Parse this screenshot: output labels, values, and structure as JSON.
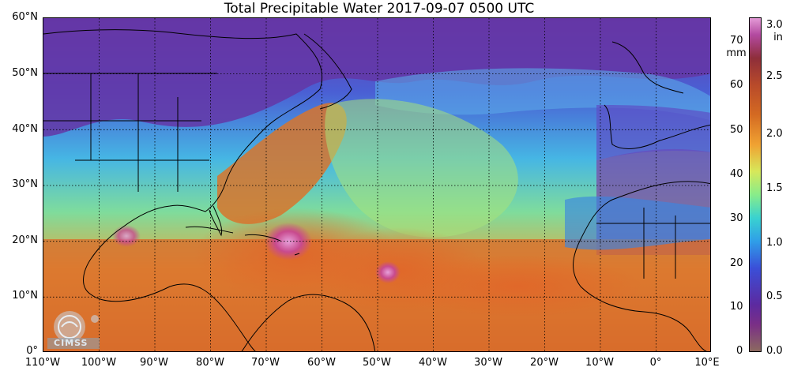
{
  "title": "Total Precipitable Water  2017-09-07 0500 UTC",
  "lat_labels": [
    "60°N",
    "50°N",
    "40°N",
    "30°N",
    "20°N",
    "10°N",
    "0°"
  ],
  "lon_labels": [
    "110°W",
    "100°W",
    "90°W",
    "80°W",
    "70°W",
    "60°W",
    "50°W",
    "40°W",
    "30°W",
    "20°W",
    "10°W",
    "0°",
    "10°E"
  ],
  "colorbar": {
    "mm_label": "mm",
    "in_label": "in",
    "mm_ticks": [
      "70",
      "60",
      "50",
      "40",
      "30",
      "20",
      "10",
      "0"
    ],
    "in_ticks": [
      "3.0",
      "2.5",
      "2.0",
      "1.5",
      "1.0",
      "0.5",
      "0.0"
    ]
  },
  "logo_text": "CIMSS",
  "colors": {
    "dry": "#5c2aa0",
    "moderate": "#39d2d0",
    "moist": "#d7e85a",
    "wet": "#d46a22",
    "very_wet": "#e39ad6"
  }
}
